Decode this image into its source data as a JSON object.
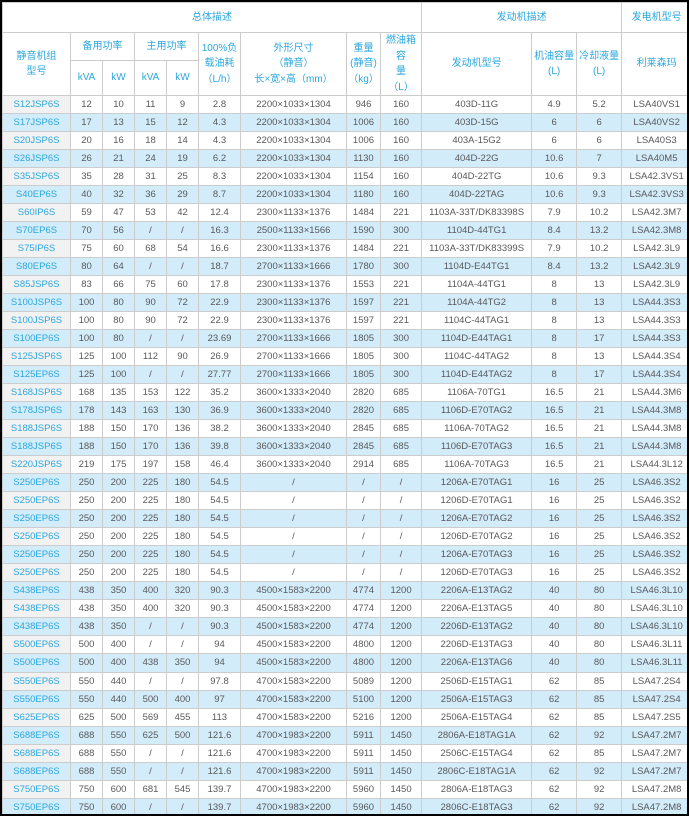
{
  "header": {
    "group_overall": "总体描述",
    "group_engine": "发动机描述",
    "group_alternator": "发电机型号",
    "col_model": "静音机组\n型号",
    "col_standby": "备用功率",
    "col_prime": "主用功率",
    "unit_standby_kva": "kVA",
    "unit_standby_kw": "kW",
    "unit_prime_kva": "kVA",
    "unit_prime_kw": "kW",
    "col_fuel": "100%负\n载油耗\n（L/h）",
    "col_dims": "外形尺寸\n（静音）\n长×宽×高（mm）",
    "col_weight": "重量\n(静音)\n（kg）",
    "col_tank": "燃油箱容\n量\n（L）",
    "col_engine": "发动机型号",
    "col_oil": "机油容量\n(L)",
    "col_coolant": "冷却液量\n(L)",
    "col_alternator": "利莱森玛"
  },
  "colors": {
    "accent_blue": "#2ba7dd",
    "row_stripe": "#d3ecfa",
    "body_text": "#58595b",
    "grid_line": "#cccccc",
    "model_col_bg": "#f2f2f2"
  },
  "rows": [
    [
      "S12JSP6S",
      "12",
      "10",
      "11",
      "9",
      "2.8",
      "2200×1033×1304",
      "946",
      "160",
      "403D-11G",
      "4.9",
      "5.2",
      "LSA40VS1"
    ],
    [
      "S17JSP6S",
      "17",
      "13",
      "15",
      "12",
      "4.3",
      "2200×1033×1304",
      "1006",
      "160",
      "403D-15G",
      "6",
      "6",
      "LSA40VS2"
    ],
    [
      "S20JSP6S",
      "20",
      "16",
      "18",
      "14",
      "4.3",
      "2200×1033×1304",
      "1006",
      "160",
      "403A-15G2",
      "6",
      "6",
      "LSA40S3"
    ],
    [
      "S26JSP6S",
      "26",
      "21",
      "24",
      "19",
      "6.2",
      "2200×1033×1304",
      "1130",
      "160",
      "404D-22G",
      "10.6",
      "7",
      "LSA40M5"
    ],
    [
      "S35JSP6S",
      "35",
      "28",
      "31",
      "25",
      "8.3",
      "2200×1033×1304",
      "1154",
      "160",
      "404D-22TG",
      "10.6",
      "9.3",
      "LSA42.3VS1"
    ],
    [
      "S40EP6S",
      "40",
      "32",
      "36",
      "29",
      "8.7",
      "2200×1033×1304",
      "1180",
      "160",
      "404D-22TAG",
      "10.6",
      "9.3",
      "LSA42.3VS3"
    ],
    [
      "S60IP6S",
      "59",
      "47",
      "53",
      "42",
      "12.4",
      "2300×1133×1376",
      "1484",
      "221",
      "1103A-33T/DK83398S",
      "7.9",
      "10.2",
      "LSA42.3M7"
    ],
    [
      "S70EP6S",
      "70",
      "56",
      "/",
      "/",
      "16.3",
      "2500×1133×1566",
      "1590",
      "300",
      "1104D-44TG1",
      "8.4",
      "13.2",
      "LSA42.3M8"
    ],
    [
      "S75IP6S",
      "75",
      "60",
      "68",
      "54",
      "16.6",
      "2300×1133×1376",
      "1484",
      "221",
      "1103A-33T/DK83399S",
      "7.9",
      "10.2",
      "LSA42.3L9"
    ],
    [
      "S80EP6S",
      "80",
      "64",
      "/",
      "/",
      "18.7",
      "2700×1133×1666",
      "1780",
      "300",
      "1104D-E44TG1",
      "8.4",
      "13.2",
      "LSA42.3L9"
    ],
    [
      "S85JSP6S",
      "83",
      "66",
      "75",
      "60",
      "17.8",
      "2300×1133×1376",
      "1553",
      "221",
      "1104A-44TG1",
      "8",
      "13",
      "LSA42.3L9"
    ],
    [
      "S100JSP6S",
      "100",
      "80",
      "90",
      "72",
      "22.9",
      "2300×1133×1376",
      "1597",
      "221",
      "1104A-44TG2",
      "8",
      "13",
      "LSA44.3S3"
    ],
    [
      "S100JSP6S",
      "100",
      "80",
      "90",
      "72",
      "22.9",
      "2300×1133×1376",
      "1597",
      "221",
      "1104C-44TAG1",
      "8",
      "13",
      "LSA44.3S3"
    ],
    [
      "S100EP6S",
      "100",
      "80",
      "/",
      "/",
      "23.69",
      "2700×1133×1666",
      "1805",
      "300",
      "1104D-E44TAG1",
      "8",
      "17",
      "LSA44.3S3"
    ],
    [
      "S125JSP6S",
      "125",
      "100",
      "112",
      "90",
      "26.9",
      "2700×1133×1666",
      "1805",
      "300",
      "1104C-44TAG2",
      "8",
      "13",
      "LSA44.3S4"
    ],
    [
      "S125EP6S",
      "125",
      "100",
      "/",
      "/",
      "27.77",
      "2700×1133×1666",
      "1805",
      "300",
      "1104D-E44TAG2",
      "8",
      "17",
      "LSA44.3S4"
    ],
    [
      "S168JSP6S",
      "168",
      "135",
      "153",
      "122",
      "35.2",
      "3600×1333×2040",
      "2820",
      "685",
      "1106A-70TG1",
      "16.5",
      "21",
      "LSA44.3M6"
    ],
    [
      "S178JSP6S",
      "178",
      "143",
      "163",
      "130",
      "36.9",
      "3600×1333×2040",
      "2820",
      "685",
      "1106D-E70TAG2",
      "16.5",
      "21",
      "LSA44.3M8"
    ],
    [
      "S188JSP6S",
      "188",
      "150",
      "170",
      "136",
      "38.2",
      "3600×1333×2040",
      "2845",
      "685",
      "1106A-70TAG2",
      "16.5",
      "21",
      "LSA44.3M8"
    ],
    [
      "S188JSP6S",
      "188",
      "150",
      "170",
      "136",
      "39.8",
      "3600×1333×2040",
      "2845",
      "685",
      "1106D-E70TAG3",
      "16.5",
      "21",
      "LSA44.3M8"
    ],
    [
      "S220JSP6S",
      "219",
      "175",
      "197",
      "158",
      "46.4",
      "3600×1333×2040",
      "2914",
      "685",
      "1106A-70TAG3",
      "16.5",
      "21",
      "LSA44.3L12"
    ],
    [
      "S250EP6S",
      "250",
      "200",
      "225",
      "180",
      "54.5",
      "/",
      "/",
      "/",
      "1206A-E70TAG1",
      "16",
      "25",
      "LSA46.3S2"
    ],
    [
      "S250EP6S",
      "250",
      "200",
      "225",
      "180",
      "54.5",
      "/",
      "/",
      "/",
      "1206D-E70TAG1",
      "16",
      "25",
      "LSA46.3S2"
    ],
    [
      "S250EP6S",
      "250",
      "200",
      "225",
      "180",
      "54.5",
      "/",
      "/",
      "/",
      "1206A-E70TAG2",
      "16",
      "25",
      "LSA46.3S2"
    ],
    [
      "S250EP6S",
      "250",
      "200",
      "225",
      "180",
      "54.5",
      "/",
      "/",
      "/",
      "1206D-E70TAG2",
      "16",
      "25",
      "LSA46.3S2"
    ],
    [
      "S250EP6S",
      "250",
      "200",
      "225",
      "180",
      "54.5",
      "/",
      "/",
      "/",
      "1206A-E70TAG3",
      "16",
      "25",
      "LSA46.3S2"
    ],
    [
      "S250EP6S",
      "250",
      "200",
      "225",
      "180",
      "54.5",
      "/",
      "/",
      "/",
      "1206D-E70TAG3",
      "16",
      "25",
      "LSA46.3S2"
    ],
    [
      "S438EP6S",
      "438",
      "350",
      "400",
      "320",
      "90.3",
      "4500×1583×2200",
      "4774",
      "1200",
      "2206A-E13TAG2",
      "40",
      "80",
      "LSA46.3L10"
    ],
    [
      "S438EP6S",
      "438",
      "350",
      "400",
      "320",
      "90.3",
      "4500×1583×2200",
      "4774",
      "1200",
      "2206A-E13TAG5",
      "40",
      "80",
      "LSA46.3L10"
    ],
    [
      "S438EP6S",
      "438",
      "350",
      "/",
      "/",
      "90.3",
      "4500×1583×2200",
      "4774",
      "1200",
      "2206D-E13TAG2",
      "40",
      "80",
      "LSA46.3L10"
    ],
    [
      "S500EP6S",
      "500",
      "400",
      "/",
      "/",
      "94",
      "4500×1583×2200",
      "4800",
      "1200",
      "2206D-E13TAG3",
      "40",
      "80",
      "LSA46.3L11"
    ],
    [
      "S500EP6S",
      "500",
      "400",
      "438",
      "350",
      "94",
      "4500×1583×2200",
      "4800",
      "1200",
      "2206A-E13TAG6",
      "40",
      "80",
      "LSA46.3L11"
    ],
    [
      "S550EP6S",
      "550",
      "440",
      "/",
      "/",
      "97.8",
      "4700×1583×2200",
      "5089",
      "1200",
      "2506D-E15TAG1",
      "62",
      "85",
      "LSA47.2S4"
    ],
    [
      "S550EP6S",
      "550",
      "440",
      "500",
      "400",
      "97",
      "4700×1583×2200",
      "5100",
      "1200",
      "2506A-E15TAG3",
      "62",
      "85",
      "LSA47.2S4"
    ],
    [
      "S625EP6S",
      "625",
      "500",
      "569",
      "455",
      "113",
      "4700×1583×2200",
      "5216",
      "1200",
      "2506A-E15TAG4",
      "62",
      "85",
      "LSA47.2S5"
    ],
    [
      "S688EP6S",
      "688",
      "550",
      "625",
      "500",
      "121.6",
      "4700×1983×2200",
      "5911",
      "1450",
      "2806A-E18TAG1A",
      "62",
      "92",
      "LSA47.2M7"
    ],
    [
      "S688EP6S",
      "688",
      "550",
      "/",
      "/",
      "121.6",
      "4700×1983×2200",
      "5911",
      "1450",
      "2506C-E15TAG4",
      "62",
      "85",
      "LSA47.2M7"
    ],
    [
      "S688EP6S",
      "688",
      "550",
      "/",
      "/",
      "121.6",
      "4700×1983×2200",
      "5911",
      "1450",
      "2806C-E18TAG1A",
      "62",
      "92",
      "LSA47.2M7"
    ],
    [
      "S750EP6S",
      "750",
      "600",
      "681",
      "545",
      "139.7",
      "4700×1983×2200",
      "5960",
      "1450",
      "2806A-E18TAG3",
      "62",
      "92",
      "LSA47.2M8"
    ],
    [
      "S750EP6S",
      "750",
      "600",
      "/",
      "/",
      "139.7",
      "4700×1983×2200",
      "5960",
      "1450",
      "2806C-E18TAG3",
      "62",
      "92",
      "LSA47.2M8"
    ]
  ]
}
